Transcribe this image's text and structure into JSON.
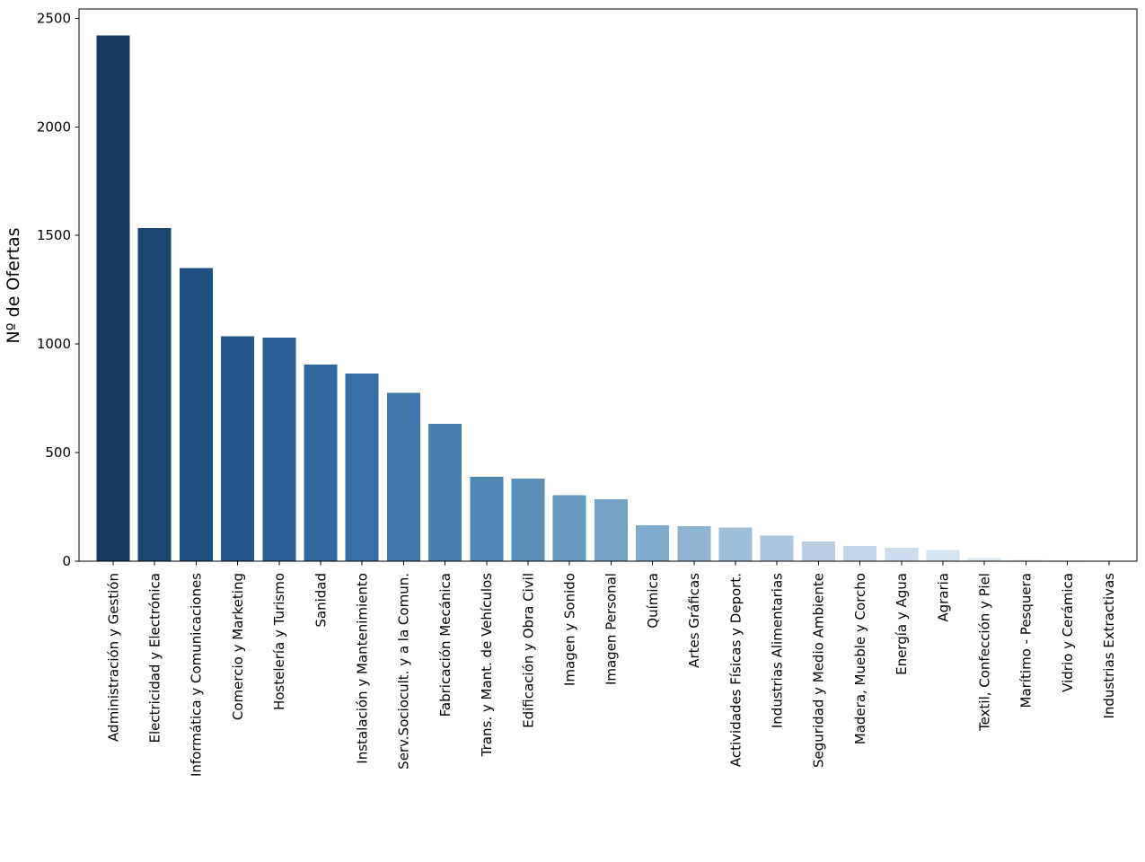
{
  "page": {
    "background": "#ffffff"
  },
  "chart_data": {
    "type": "bar",
    "title": "",
    "xlabel": "",
    "ylabel": "Nº de Ofertas",
    "ylabel_color": "#1b5fa8",
    "ylim": [
      0,
      2543
    ],
    "yticks": [
      0,
      500,
      1000,
      1500,
      2000,
      2500
    ],
    "grid": false,
    "legend": "none",
    "orientation": "vertical",
    "x_tick_rotation_deg": 90,
    "frame_color": "#000000",
    "tick_color": "#000000",
    "categories": [
      "Administración y Gestión",
      "Electricidad y Electrónica",
      "Informática y Comunicaciones",
      "Comercio y Marketing",
      "Hostelería y Turismo",
      "Sanidad",
      "Instalación y Mantenimiento",
      "Serv.Sociocult. y a la Comun.",
      "Fabricación Mecánica",
      "Trans. y Mant. de Vehículos",
      "Edificación y Obra Civil",
      "Imagen y Sonido",
      "Imagen Personal",
      "Química",
      "Artes Gráficas",
      "Actividades Físicas y Deport.",
      "Industrias Alimentarias",
      "Seguridad y Medio Ambiente",
      "Madera, Mueble y Corcho",
      "Energía y Agua",
      "Agraria",
      "Textil, Confección y Piel",
      "Marítimo - Pesquera",
      "Vidrio y Cerámica",
      "Industrias Extractivas"
    ],
    "values": [
      2420,
      1535,
      1350,
      1035,
      1030,
      905,
      865,
      775,
      632,
      388,
      381,
      304,
      285,
      165,
      162,
      156,
      117,
      91,
      71,
      62,
      51,
      15,
      7,
      5,
      2
    ],
    "bar_colors": [
      "#163a64",
      "#1b4572",
      "#1f4e81",
      "#25588d",
      "#2a6099",
      "#3068a0",
      "#3770a7",
      "#3f78ac",
      "#4780b1",
      "#4f88b5",
      "#5a90ba",
      "#6699bf",
      "#73a2c5",
      "#81abcc",
      "#8fb4d2",
      "#9dbdd8",
      "#abc6dd",
      "#b9cfe3",
      "#c3d6e8",
      "#ccdcec",
      "#d4e3f0",
      "#dce9f4",
      "#e3edf6",
      "#e9f1f9",
      "#eff5fb"
    ]
  }
}
